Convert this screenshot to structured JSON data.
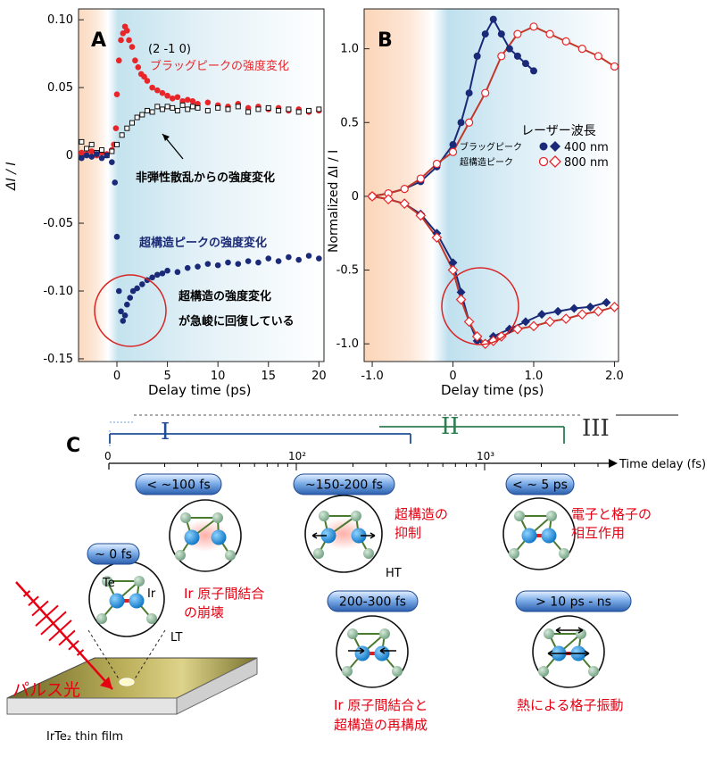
{
  "panelA": {
    "label": "A",
    "xlabel": "Delay time (ps)",
    "ylabel": "ΔI / I",
    "xticks": [
      "0",
      "5",
      "10",
      "15",
      "20"
    ],
    "yticks": [
      "0.10",
      "0.05",
      "0",
      "-0.05",
      "-0.10",
      "-0.15"
    ],
    "miller": "(2 -1 0)",
    "bragg_label": "ブラッグピークの強度変化",
    "inelastic_label": "非弾性散乱からの強度変化",
    "superstructure_label": "超構造ピークの強度変化",
    "note_line1": "超構造の強度変化",
    "note_line2": "が急峻に回復している"
  },
  "panelB": {
    "label": "B",
    "xlabel": "Delay time (ps)",
    "ylabel": "Normalized ΔI / I",
    "xticks": [
      "-1.0",
      "0",
      "1.0",
      "2.0"
    ],
    "yticks": [
      "1.0",
      "0.5",
      "0",
      "-0.5",
      "-1.0"
    ],
    "legend_title": "レーザー波長",
    "legend_bragg": "ブラッグピーク",
    "legend_super": "超構造ピーク",
    "legend_400": "400 nm",
    "legend_800": "800 nm"
  },
  "panelC": {
    "label": "C",
    "axis_label": "Time delay (fs)",
    "tick_0": "0",
    "tick_100": "10²",
    "tick_1000": "10³",
    "region_I": "I",
    "region_II": "II",
    "region_III": "III",
    "badges": [
      "~ 0 fs",
      "< ~100 fs",
      "~150-200 fs",
      "< ~ 5 ps",
      "200-300 fs",
      "> 10 ps - ns"
    ],
    "atom_te": "Te",
    "atom_ir": "Ir",
    "phase_lt": "LT",
    "phase_ht": "HT",
    "caption_100fs_1": "Ir 原子間結合",
    "caption_100fs_2": "の崩壊",
    "caption_150fs_1": "超構造の",
    "caption_150fs_2": "抑制",
    "caption_5ps_1": "電子と格子の",
    "caption_5ps_2": "相互作用",
    "caption_200fs_1": "Ir 原子間結合と",
    "caption_200fs_2": "超構造の再構成",
    "caption_10ps": "熱による格子振動",
    "pulse_label": "パルス光",
    "film_label": "IrTe₂ thin film"
  },
  "colors": {
    "bragg_red": "#e8262a",
    "super_blue": "#1b2a78",
    "caption_red": "#e60012",
    "region_I": "#1f4e96",
    "region_II": "#2e7d4f",
    "region_III": "#333333",
    "badge_blue": "#3a72c8",
    "ir_atom": "#1e90d6",
    "te_atom": "#8db89a"
  },
  "chart_data": [
    {
      "type": "scatter",
      "xlabel": "Delay time (ps)",
      "ylabel": "ΔI / I",
      "xlim": [
        -3.8,
        20.5
      ],
      "ylim": [
        -0.152,
        0.108
      ],
      "series": [
        {
          "name": "ブラッグピークの強度変化",
          "marker": "filled-circle",
          "color": "#e8262a",
          "x": [
            -3.5,
            -3,
            -2.5,
            -2,
            -1.5,
            -1,
            -0.5,
            -0.3,
            -0.1,
            0,
            0.2,
            0.4,
            0.6,
            0.8,
            1.0,
            1.2,
            1.5,
            1.8,
            2.1,
            2.4,
            2.7,
            3,
            3.5,
            4,
            4.5,
            5,
            5.5,
            6,
            6.5,
            7,
            7.5,
            8,
            9,
            10,
            11,
            12,
            13,
            14,
            15,
            16,
            17,
            18,
            19,
            20
          ],
          "y": [
            0.002,
            0.001,
            0.003,
            0.0,
            0.002,
            0.001,
            0.004,
            0.008,
            0.02,
            0.045,
            0.07,
            0.085,
            0.09,
            0.095,
            0.092,
            0.085,
            0.08,
            0.07,
            0.065,
            0.06,
            0.058,
            0.055,
            0.05,
            0.048,
            0.046,
            0.044,
            0.042,
            0.043,
            0.04,
            0.041,
            0.04,
            0.038,
            0.039,
            0.037,
            0.036,
            0.038,
            0.035,
            0.036,
            0.034,
            0.035,
            0.033,
            0.034,
            0.032,
            0.033
          ]
        },
        {
          "name": "非弾性散乱からの強度変化",
          "marker": "open-square",
          "color": "#111111",
          "x": [
            -3.5,
            -3,
            -2.5,
            -2,
            -1.5,
            -1,
            -0.5,
            0,
            0.5,
            1,
            1.5,
            2,
            2.5,
            3,
            3.5,
            4,
            4.5,
            5,
            5.5,
            6,
            6.5,
            7,
            7.5,
            8,
            9,
            10,
            11,
            12,
            13,
            14,
            15,
            16,
            17,
            18,
            19,
            20
          ],
          "y": [
            0.01,
            0.005,
            0.008,
            0.002,
            0.004,
            0.0,
            0.003,
            0.008,
            0.015,
            0.02,
            0.024,
            0.028,
            0.03,
            0.033,
            0.032,
            0.036,
            0.034,
            0.036,
            0.035,
            0.033,
            0.037,
            0.034,
            0.036,
            0.035,
            0.033,
            0.035,
            0.034,
            0.036,
            0.032,
            0.034,
            0.035,
            0.033,
            0.034,
            0.032,
            0.033,
            0.034
          ]
        },
        {
          "name": "超構造ピークの強度変化",
          "marker": "filled-circle",
          "color": "#1b2a78",
          "x": [
            -3.5,
            -3,
            -2.5,
            -2,
            -1.5,
            -1,
            -0.5,
            -0.2,
            0,
            0.2,
            0.4,
            0.6,
            0.8,
            1.0,
            1.3,
            1.6,
            2,
            2.5,
            3,
            3.5,
            4,
            4.5,
            5,
            6,
            7,
            8,
            9,
            10,
            11,
            12,
            13,
            14,
            15,
            16,
            17,
            18,
            19,
            20
          ],
          "y": [
            -0.002,
            0.0,
            -0.001,
            0.001,
            -0.002,
            0.0,
            -0.005,
            -0.02,
            -0.06,
            -0.1,
            -0.115,
            -0.122,
            -0.118,
            -0.11,
            -0.105,
            -0.1,
            -0.098,
            -0.095,
            -0.092,
            -0.09,
            -0.088,
            -0.087,
            -0.085,
            -0.086,
            -0.083,
            -0.082,
            -0.08,
            -0.081,
            -0.079,
            -0.08,
            -0.078,
            -0.079,
            -0.076,
            -0.078,
            -0.075,
            -0.077,
            -0.074,
            -0.076
          ]
        }
      ]
    },
    {
      "type": "line",
      "xlabel": "Delay time (ps)",
      "ylabel": "Normalized ΔI / I",
      "xlim": [
        -1.1,
        2.05
      ],
      "ylim": [
        -1.12,
        1.27
      ],
      "series": [
        {
          "name": "400 nm",
          "role": "ブラッグピーク",
          "marker": "filled-circle",
          "color": "#1b2a78",
          "x": [
            -1.0,
            -0.8,
            -0.6,
            -0.4,
            -0.2,
            0.0,
            0.1,
            0.2,
            0.3,
            0.4,
            0.5,
            0.6,
            0.7,
            0.8,
            0.9,
            1.0
          ],
          "y": [
            0.0,
            0.02,
            0.05,
            0.1,
            0.2,
            0.35,
            0.5,
            0.7,
            0.95,
            1.1,
            1.2,
            1.1,
            1.0,
            0.95,
            0.9,
            0.85
          ]
        },
        {
          "name": "800 nm",
          "role": "ブラッグピーク",
          "marker": "open-circle",
          "color": "#e8262a",
          "x": [
            -1.0,
            -0.8,
            -0.6,
            -0.4,
            -0.2,
            0.0,
            0.2,
            0.4,
            0.6,
            0.8,
            1.0,
            1.2,
            1.4,
            1.6,
            1.8,
            2.0
          ],
          "y": [
            0.0,
            0.02,
            0.05,
            0.12,
            0.22,
            0.3,
            0.5,
            0.7,
            0.95,
            1.1,
            1.15,
            1.1,
            1.05,
            1.0,
            0.95,
            0.88
          ]
        },
        {
          "name": "400 nm",
          "role": "超構造ピーク",
          "marker": "filled-diamond",
          "color": "#1b2a78",
          "x": [
            -1.0,
            -0.8,
            -0.6,
            -0.4,
            -0.2,
            0.0,
            0.1,
            0.2,
            0.3,
            0.4,
            0.5,
            0.7,
            0.9,
            1.1,
            1.3,
            1.5,
            1.7,
            1.9
          ],
          "y": [
            0.0,
            -0.02,
            -0.05,
            -0.12,
            -0.25,
            -0.45,
            -0.65,
            -0.85,
            -0.98,
            -1.0,
            -0.95,
            -0.9,
            -0.85,
            -0.8,
            -0.78,
            -0.76,
            -0.75,
            -0.72
          ]
        },
        {
          "name": "800 nm",
          "role": "超構造ピーク",
          "marker": "open-diamond",
          "color": "#e8262a",
          "x": [
            -1.0,
            -0.8,
            -0.6,
            -0.4,
            -0.2,
            0.0,
            0.1,
            0.2,
            0.3,
            0.4,
            0.5,
            0.6,
            0.8,
            1.0,
            1.2,
            1.4,
            1.6,
            1.8,
            2.0
          ],
          "y": [
            0.0,
            -0.02,
            -0.05,
            -0.13,
            -0.28,
            -0.5,
            -0.7,
            -0.85,
            -0.95,
            -1.0,
            -0.98,
            -0.95,
            -0.9,
            -0.88,
            -0.85,
            -0.83,
            -0.8,
            -0.78,
            -0.75
          ]
        }
      ]
    }
  ]
}
